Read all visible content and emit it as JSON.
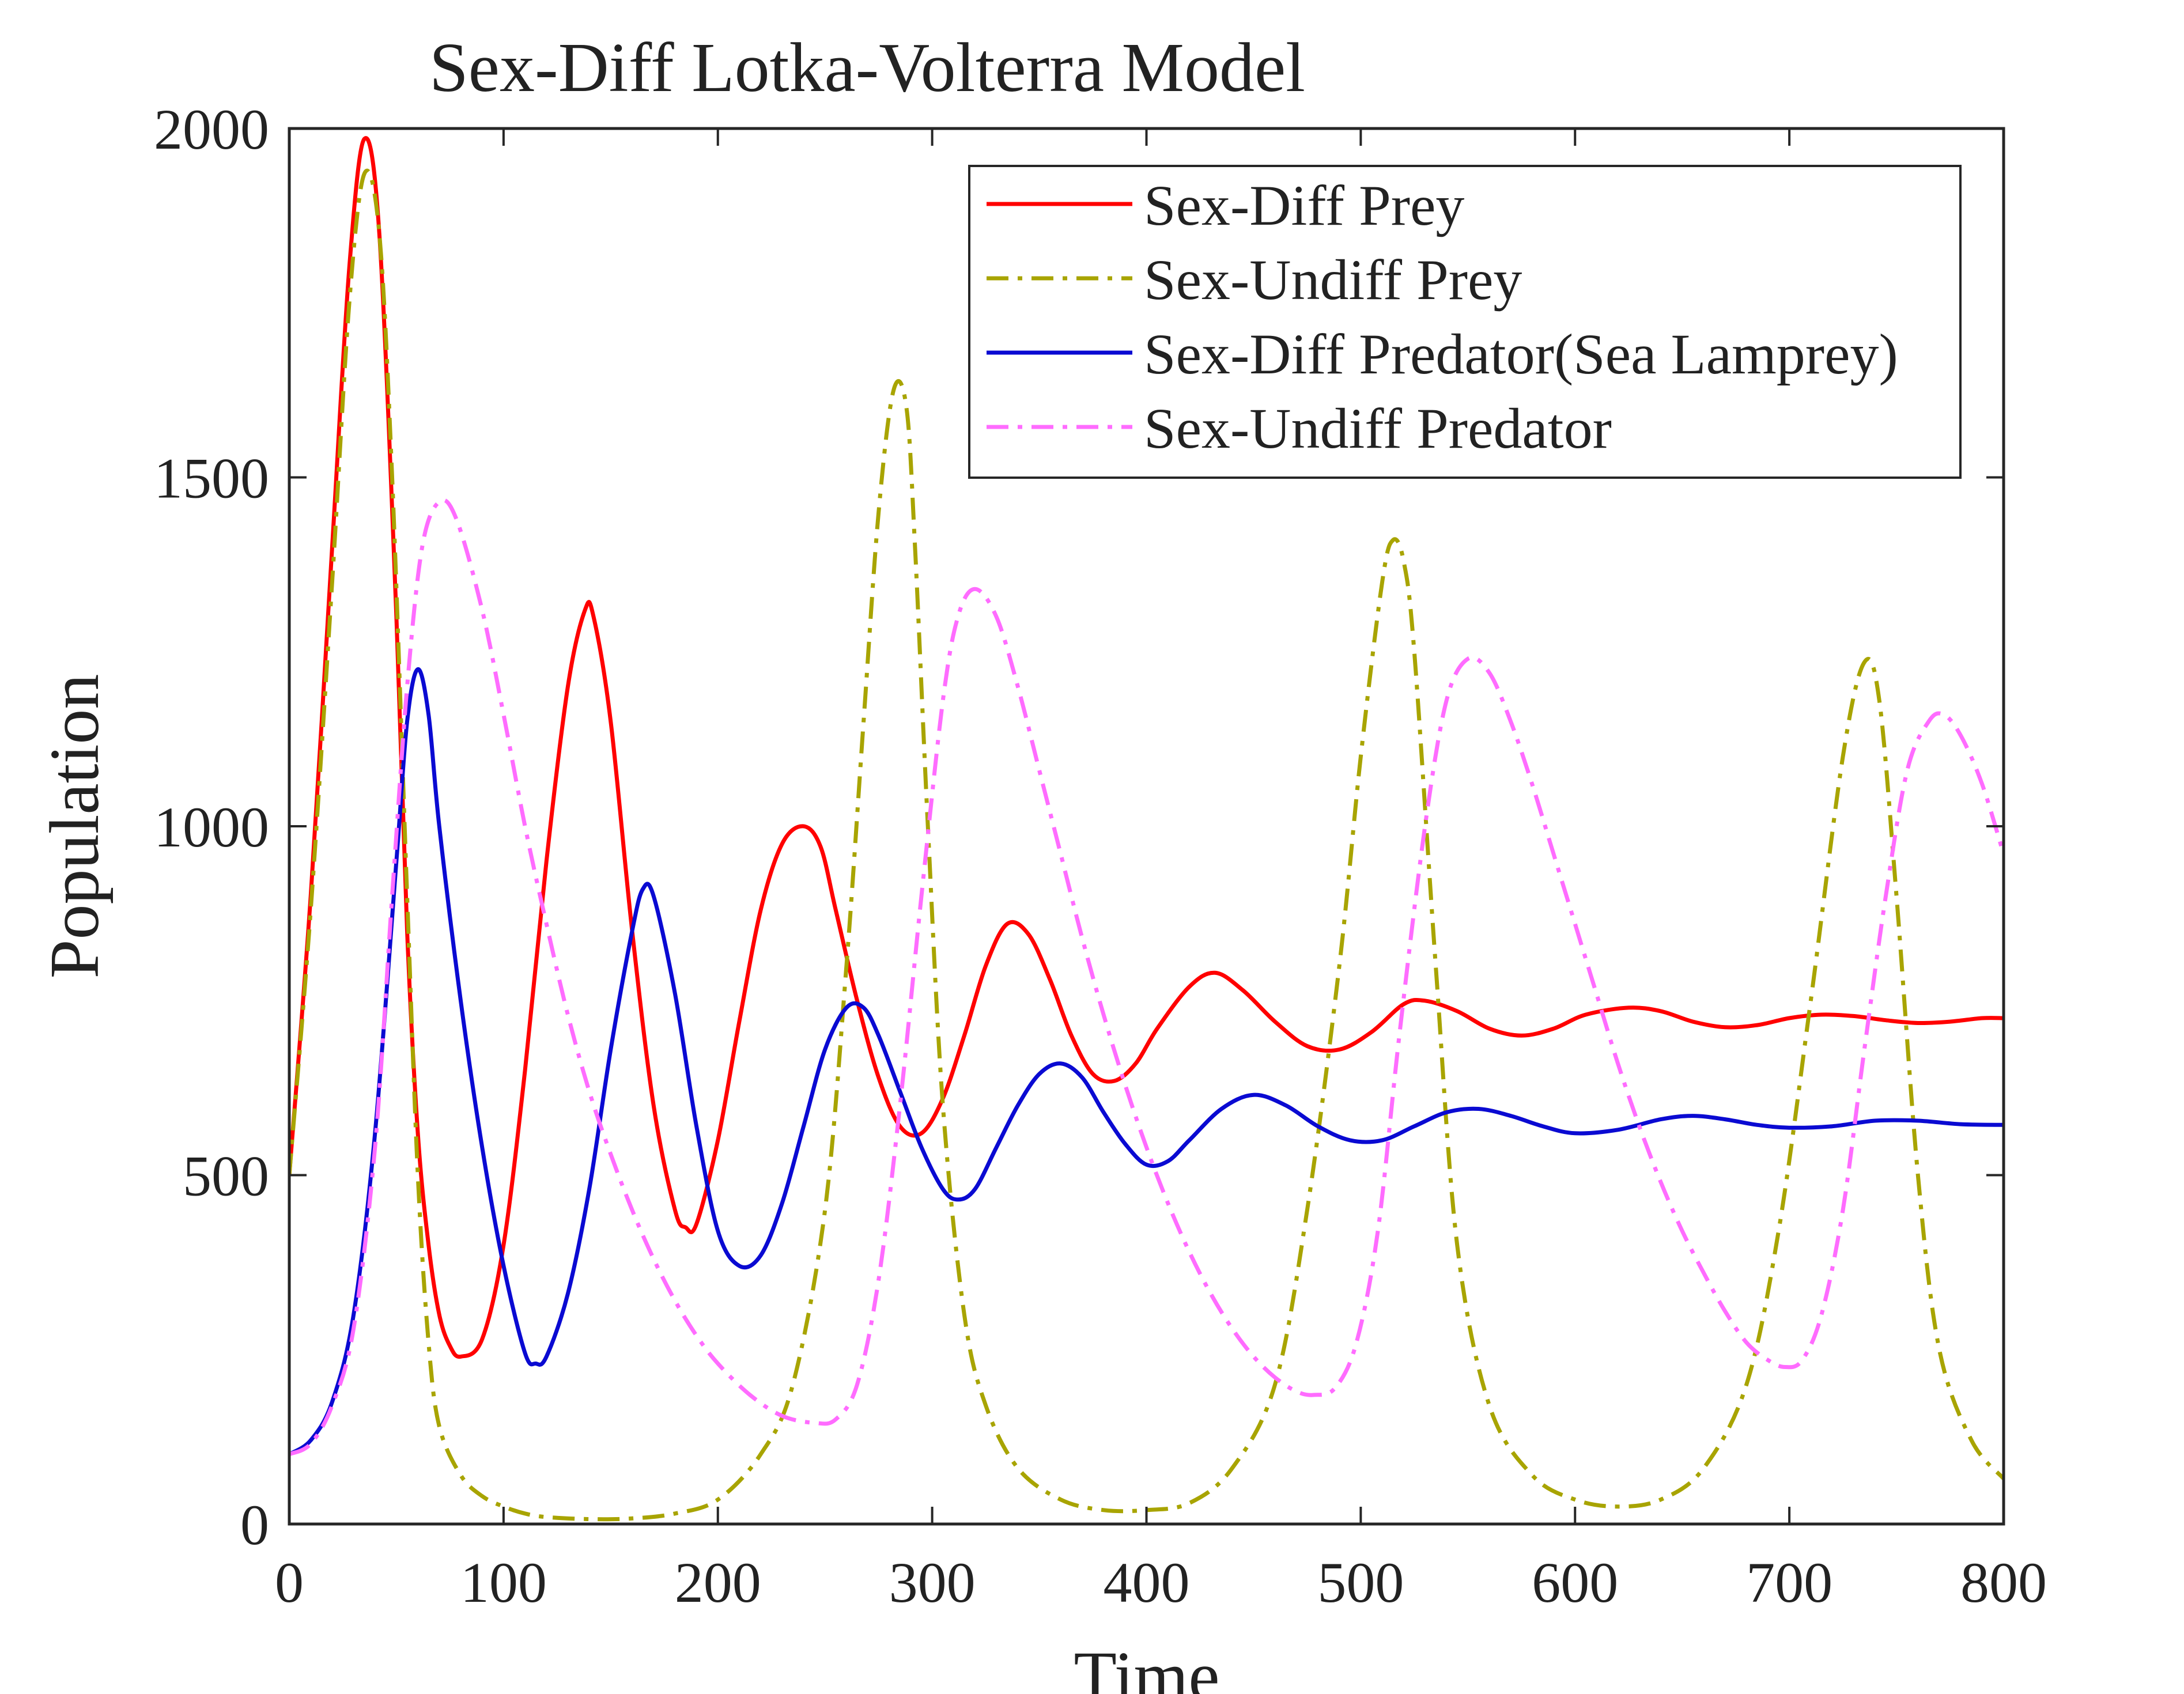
{
  "chart_data": {
    "type": "line",
    "title": "Sex-Diff Lotka-Volterra Model",
    "xlabel": "Time",
    "ylabel": "Population",
    "xlim": [
      0,
      800
    ],
    "ylim": [
      0,
      2000
    ],
    "xticks": [
      0,
      100,
      200,
      300,
      400,
      500,
      600,
      700,
      800
    ],
    "yticks": [
      0,
      500,
      1000,
      1500,
      2000
    ],
    "xtick_labels": [
      "0",
      "100",
      "200",
      "300",
      "400",
      "500",
      "600",
      "700",
      "800"
    ],
    "ytick_labels": [
      "0",
      "500",
      "1000",
      "1500",
      "2000"
    ],
    "grid": false,
    "legend_position": "top-right",
    "series": [
      {
        "name": "Sex-Diff Prey",
        "color": "#ff0000",
        "style": "solid",
        "points": [
          [
            0,
            500
          ],
          [
            10,
            900
          ],
          [
            20,
            1400
          ],
          [
            28,
            1800
          ],
          [
            35,
            1985
          ],
          [
            42,
            1850
          ],
          [
            50,
            1300
          ],
          [
            55,
            850
          ],
          [
            60,
            560
          ],
          [
            65,
            400
          ],
          [
            70,
            300
          ],
          [
            75,
            255
          ],
          [
            80,
            240
          ],
          [
            90,
            265
          ],
          [
            100,
            400
          ],
          [
            110,
            650
          ],
          [
            120,
            950
          ],
          [
            130,
            1200
          ],
          [
            138,
            1310
          ],
          [
            142,
            1300
          ],
          [
            150,
            1150
          ],
          [
            160,
            850
          ],
          [
            170,
            600
          ],
          [
            180,
            450
          ],
          [
            185,
            425
          ],
          [
            190,
            430
          ],
          [
            200,
            550
          ],
          [
            210,
            720
          ],
          [
            220,
            880
          ],
          [
            230,
            975
          ],
          [
            240,
            1000
          ],
          [
            248,
            970
          ],
          [
            255,
            880
          ],
          [
            265,
            750
          ],
          [
            275,
            640
          ],
          [
            285,
            570
          ],
          [
            295,
            560
          ],
          [
            305,
            610
          ],
          [
            315,
            700
          ],
          [
            325,
            800
          ],
          [
            335,
            860
          ],
          [
            345,
            845
          ],
          [
            355,
            780
          ],
          [
            365,
            700
          ],
          [
            375,
            645
          ],
          [
            385,
            635
          ],
          [
            395,
            660
          ],
          [
            405,
            710
          ],
          [
            420,
            770
          ],
          [
            432,
            790
          ],
          [
            445,
            765
          ],
          [
            460,
            720
          ],
          [
            475,
            685
          ],
          [
            490,
            680
          ],
          [
            505,
            705
          ],
          [
            520,
            745
          ],
          [
            530,
            750
          ],
          [
            545,
            735
          ],
          [
            560,
            710
          ],
          [
            575,
            700
          ],
          [
            590,
            710
          ],
          [
            605,
            730
          ],
          [
            625,
            740
          ],
          [
            640,
            735
          ],
          [
            655,
            720
          ],
          [
            670,
            712
          ],
          [
            685,
            715
          ],
          [
            700,
            725
          ],
          [
            715,
            730
          ],
          [
            730,
            728
          ],
          [
            745,
            722
          ],
          [
            760,
            718
          ],
          [
            775,
            720
          ],
          [
            790,
            725
          ],
          [
            800,
            725
          ]
        ]
      },
      {
        "name": "Sex-Undiff Prey",
        "color": "#a8a400",
        "style": "dashdot",
        "points": [
          [
            0,
            500
          ],
          [
            10,
            880
          ],
          [
            20,
            1350
          ],
          [
            28,
            1750
          ],
          [
            35,
            1935
          ],
          [
            42,
            1850
          ],
          [
            48,
            1500
          ],
          [
            55,
            900
          ],
          [
            60,
            500
          ],
          [
            65,
            260
          ],
          [
            70,
            140
          ],
          [
            80,
            70
          ],
          [
            90,
            40
          ],
          [
            100,
            25
          ],
          [
            110,
            15
          ],
          [
            120,
            10
          ],
          [
            140,
            7
          ],
          [
            160,
            8
          ],
          [
            180,
            15
          ],
          [
            200,
            35
          ],
          [
            220,
            100
          ],
          [
            235,
            200
          ],
          [
            250,
            450
          ],
          [
            260,
            800
          ],
          [
            268,
            1150
          ],
          [
            275,
            1450
          ],
          [
            282,
            1625
          ],
          [
            288,
            1600
          ],
          [
            292,
            1400
          ],
          [
            298,
            1000
          ],
          [
            305,
            600
          ],
          [
            315,
            300
          ],
          [
            325,
            170
          ],
          [
            340,
            80
          ],
          [
            360,
            35
          ],
          [
            380,
            20
          ],
          [
            400,
            20
          ],
          [
            420,
            30
          ],
          [
            440,
            80
          ],
          [
            460,
            200
          ],
          [
            475,
            450
          ],
          [
            490,
            800
          ],
          [
            500,
            1100
          ],
          [
            510,
            1350
          ],
          [
            515,
            1410
          ],
          [
            520,
            1380
          ],
          [
            525,
            1250
          ],
          [
            535,
            800
          ],
          [
            545,
            400
          ],
          [
            560,
            170
          ],
          [
            580,
            70
          ],
          [
            600,
            35
          ],
          [
            620,
            25
          ],
          [
            640,
            35
          ],
          [
            660,
            80
          ],
          [
            680,
            200
          ],
          [
            695,
            420
          ],
          [
            710,
            750
          ],
          [
            725,
            1100
          ],
          [
            735,
            1235
          ],
          [
            742,
            1180
          ],
          [
            750,
            900
          ],
          [
            760,
            500
          ],
          [
            770,
            250
          ],
          [
            785,
            120
          ],
          [
            800,
            65
          ]
        ]
      },
      {
        "name": "Sex-Diff Predator(Sea Lamprey)",
        "color": "#0a0ad2",
        "style": "solid",
        "points": [
          [
            0,
            100
          ],
          [
            10,
            120
          ],
          [
            20,
            175
          ],
          [
            30,
            300
          ],
          [
            40,
            560
          ],
          [
            50,
            950
          ],
          [
            55,
            1150
          ],
          [
            60,
            1225
          ],
          [
            65,
            1160
          ],
          [
            70,
            1000
          ],
          [
            80,
            750
          ],
          [
            90,
            540
          ],
          [
            100,
            370
          ],
          [
            110,
            245
          ],
          [
            115,
            230
          ],
          [
            120,
            240
          ],
          [
            130,
            330
          ],
          [
            140,
            480
          ],
          [
            150,
            680
          ],
          [
            160,
            850
          ],
          [
            165,
            910
          ],
          [
            170,
            900
          ],
          [
            180,
            760
          ],
          [
            190,
            570
          ],
          [
            200,
            420
          ],
          [
            210,
            370
          ],
          [
            220,
            385
          ],
          [
            230,
            460
          ],
          [
            240,
            570
          ],
          [
            250,
            680
          ],
          [
            260,
            740
          ],
          [
            268,
            740
          ],
          [
            275,
            700
          ],
          [
            285,
            620
          ],
          [
            295,
            540
          ],
          [
            305,
            480
          ],
          [
            312,
            465
          ],
          [
            320,
            480
          ],
          [
            330,
            540
          ],
          [
            340,
            600
          ],
          [
            350,
            645
          ],
          [
            360,
            660
          ],
          [
            370,
            640
          ],
          [
            380,
            590
          ],
          [
            390,
            545
          ],
          [
            400,
            515
          ],
          [
            410,
            520
          ],
          [
            420,
            550
          ],
          [
            435,
            595
          ],
          [
            450,
            615
          ],
          [
            465,
            600
          ],
          [
            480,
            570
          ],
          [
            495,
            550
          ],
          [
            510,
            550
          ],
          [
            525,
            570
          ],
          [
            540,
            590
          ],
          [
            555,
            595
          ],
          [
            570,
            585
          ],
          [
            585,
            570
          ],
          [
            600,
            560
          ],
          [
            620,
            565
          ],
          [
            640,
            580
          ],
          [
            655,
            585
          ],
          [
            670,
            580
          ],
          [
            685,
            572
          ],
          [
            700,
            568
          ],
          [
            720,
            570
          ],
          [
            740,
            578
          ],
          [
            760,
            578
          ],
          [
            780,
            573
          ],
          [
            800,
            572
          ]
        ]
      },
      {
        "name": "Sex-Undiff Predator",
        "color": "#ff6cff",
        "style": "dashdot",
        "points": [
          [
            0,
            100
          ],
          [
            10,
            115
          ],
          [
            20,
            170
          ],
          [
            30,
            280
          ],
          [
            40,
            540
          ],
          [
            48,
            900
          ],
          [
            55,
            1200
          ],
          [
            62,
            1400
          ],
          [
            70,
            1465
          ],
          [
            78,
            1440
          ],
          [
            90,
            1310
          ],
          [
            100,
            1160
          ],
          [
            110,
            1000
          ],
          [
            120,
            860
          ],
          [
            130,
            730
          ],
          [
            140,
            620
          ],
          [
            150,
            530
          ],
          [
            160,
            450
          ],
          [
            170,
            380
          ],
          [
            180,
            320
          ],
          [
            190,
            270
          ],
          [
            200,
            230
          ],
          [
            215,
            185
          ],
          [
            230,
            155
          ],
          [
            245,
            145
          ],
          [
            255,
            150
          ],
          [
            265,
            200
          ],
          [
            275,
            350
          ],
          [
            285,
            600
          ],
          [
            295,
            900
          ],
          [
            305,
            1180
          ],
          [
            312,
            1300
          ],
          [
            320,
            1340
          ],
          [
            330,
            1300
          ],
          [
            340,
            1200
          ],
          [
            350,
            1080
          ],
          [
            360,
            960
          ],
          [
            370,
            840
          ],
          [
            380,
            730
          ],
          [
            390,
            630
          ],
          [
            400,
            540
          ],
          [
            410,
            460
          ],
          [
            420,
            390
          ],
          [
            430,
            330
          ],
          [
            440,
            280
          ],
          [
            450,
            240
          ],
          [
            460,
            210
          ],
          [
            470,
            190
          ],
          [
            478,
            185
          ],
          [
            488,
            195
          ],
          [
            498,
            260
          ],
          [
            508,
            420
          ],
          [
            518,
            700
          ],
          [
            530,
            1000
          ],
          [
            540,
            1180
          ],
          [
            550,
            1240
          ],
          [
            560,
            1220
          ],
          [
            570,
            1150
          ],
          [
            580,
            1060
          ],
          [
            590,
            960
          ],
          [
            600,
            860
          ],
          [
            610,
            760
          ],
          [
            620,
            660
          ],
          [
            630,
            570
          ],
          [
            640,
            490
          ],
          [
            650,
            420
          ],
          [
            660,
            360
          ],
          [
            670,
            305
          ],
          [
            680,
            260
          ],
          [
            690,
            235
          ],
          [
            698,
            225
          ],
          [
            706,
            235
          ],
          [
            715,
            300
          ],
          [
            725,
            450
          ],
          [
            735,
            680
          ],
          [
            745,
            900
          ],
          [
            755,
            1080
          ],
          [
            765,
            1150
          ],
          [
            772,
            1160
          ],
          [
            780,
            1130
          ],
          [
            790,
            1060
          ],
          [
            800,
            960
          ]
        ]
      }
    ]
  }
}
